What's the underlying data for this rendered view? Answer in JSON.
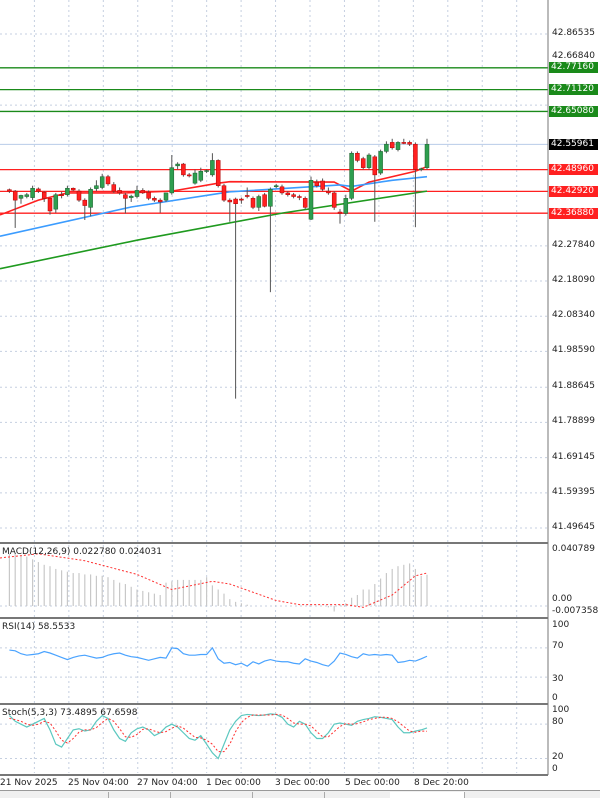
{
  "price_axis": {
    "labels": [
      "42.86535",
      "42.66840",
      "42.27840",
      "42.18090",
      "42.08340",
      "41.98590",
      "41.88645",
      "41.78899",
      "41.69145",
      "41.59395",
      "41.49645"
    ]
  },
  "levels": {
    "resistance": [
      {
        "price": 42.7716,
        "label": "42.77160"
      },
      {
        "price": 42.7112,
        "label": "42.71120"
      },
      {
        "price": 42.6508,
        "label": "42.65080"
      }
    ],
    "support": [
      {
        "price": 42.4896,
        "label": "42.48960"
      },
      {
        "price": 42.4292,
        "label": "42.42920"
      },
      {
        "price": 42.3688,
        "label": "42.36880"
      }
    ],
    "current": {
      "price": 42.55961,
      "label": "42.55961"
    }
  },
  "colors": {
    "bull": "#2e9e4f",
    "bear": "#ff2020",
    "resistance": "#1a8a1a",
    "support": "#ff2020",
    "ma_fast": "#ff2020",
    "ma_mid": "#3b9cff",
    "ma_slow": "#1f9a1f",
    "rsi": "#4aa3ff",
    "stoch_k": "#5cc8c0",
    "stoch_d": "#ff3030",
    "macd_hist": "#c8c8c8",
    "macd_signal": "#ff3030"
  },
  "chart_data": [
    {
      "type": "candlestick",
      "ohlc": [
        [
          42.434,
          42.437,
          42.425,
          42.43
        ],
        [
          42.43,
          42.433,
          42.328,
          42.405
        ],
        [
          42.41,
          42.42,
          42.395,
          42.418
        ],
        [
          42.415,
          42.425,
          42.41,
          42.42
        ],
        [
          42.412,
          42.445,
          42.405,
          42.438
        ],
        [
          42.436,
          42.44,
          42.425,
          42.43
        ],
        [
          42.427,
          42.43,
          42.4,
          42.41
        ],
        [
          42.41,
          42.412,
          42.365,
          42.375
        ],
        [
          42.38,
          42.425,
          42.37,
          42.42
        ],
        [
          42.42,
          42.428,
          42.41,
          42.418
        ],
        [
          42.42,
          42.445,
          42.415,
          42.438
        ],
        [
          42.438,
          42.44,
          42.43,
          42.433
        ],
        [
          42.43,
          42.435,
          42.4,
          42.405
        ],
        [
          42.405,
          42.41,
          42.35,
          42.39
        ],
        [
          42.385,
          42.44,
          42.36,
          42.435
        ],
        [
          42.437,
          42.46,
          42.43,
          42.445
        ],
        [
          42.44,
          42.478,
          42.435,
          42.47
        ],
        [
          42.47,
          42.475,
          42.445,
          42.45
        ],
        [
          42.448,
          42.455,
          42.425,
          42.43
        ],
        [
          42.432,
          42.44,
          42.42,
          42.425
        ],
        [
          42.42,
          42.425,
          42.368,
          42.41
        ],
        [
          42.412,
          42.42,
          42.4,
          42.416
        ],
        [
          42.415,
          42.445,
          42.41,
          42.432
        ],
        [
          42.432,
          42.438,
          42.422,
          42.425
        ],
        [
          42.427,
          42.432,
          42.405,
          42.41
        ],
        [
          42.41,
          42.415,
          42.4,
          42.405
        ],
        [
          42.405,
          42.41,
          42.37,
          42.4
        ],
        [
          42.405,
          42.425,
          42.4,
          42.425
        ],
        [
          42.425,
          42.53,
          42.42,
          42.495
        ],
        [
          42.5,
          42.51,
          42.49,
          42.505
        ],
        [
          42.505,
          42.508,
          42.47,
          42.475
        ],
        [
          42.475,
          42.48,
          42.468,
          42.472
        ],
        [
          42.452,
          42.49,
          42.448,
          42.48
        ],
        [
          42.46,
          42.495,
          42.455,
          42.485
        ],
        [
          42.485,
          42.49,
          42.48,
          42.487
        ],
        [
          42.475,
          42.535,
          42.47,
          42.515
        ],
        [
          42.515,
          42.518,
          42.44,
          42.445
        ],
        [
          42.445,
          42.45,
          42.4,
          42.405
        ],
        [
          42.405,
          42.41,
          42.345,
          42.4
        ],
        [
          42.408,
          42.412,
          41.855,
          42.395
        ],
        [
          42.408,
          42.412,
          42.395,
          42.405
        ],
        [
          42.418,
          42.44,
          42.41,
          42.415
        ],
        [
          42.41,
          42.415,
          42.38,
          42.385
        ],
        [
          42.385,
          42.42,
          42.375,
          42.415
        ],
        [
          42.42,
          42.425,
          42.385,
          42.388
        ],
        [
          42.388,
          42.44,
          42.15,
          42.435
        ],
        [
          42.442,
          42.45,
          42.438,
          42.445
        ],
        [
          42.442,
          42.448,
          42.42,
          42.425
        ],
        [
          42.425,
          42.43,
          42.415,
          42.42
        ],
        [
          42.42,
          42.425,
          42.41,
          42.415
        ],
        [
          42.415,
          42.42,
          42.405,
          42.413
        ],
        [
          42.41,
          42.415,
          42.38,
          42.385
        ],
        [
          42.352,
          42.47,
          42.35,
          42.46
        ],
        [
          42.455,
          42.462,
          42.44,
          42.445
        ],
        [
          42.458,
          42.465,
          42.43,
          42.435
        ],
        [
          42.43,
          42.44,
          42.42,
          42.425
        ],
        [
          42.425,
          42.43,
          42.378,
          42.385
        ],
        [
          42.372,
          42.38,
          42.34,
          42.368
        ],
        [
          42.368,
          42.42,
          42.362,
          42.41
        ],
        [
          42.41,
          42.54,
          42.405,
          42.535
        ],
        [
          42.535,
          42.54,
          42.51,
          42.515
        ],
        [
          42.52,
          42.525,
          42.49,
          42.495
        ],
        [
          42.495,
          42.535,
          42.49,
          42.53
        ],
        [
          42.525,
          42.53,
          42.345,
          42.475
        ],
        [
          42.48,
          42.545,
          42.475,
          42.54
        ],
        [
          42.54,
          42.568,
          42.535,
          42.56
        ],
        [
          42.565,
          42.575,
          42.545,
          42.55
        ],
        [
          42.545,
          42.568,
          42.54,
          42.565
        ],
        [
          42.565,
          42.575,
          42.56,
          42.562
        ],
        [
          42.565,
          42.57,
          42.555,
          42.56
        ],
        [
          42.56,
          42.565,
          42.33,
          42.49
        ],
        [
          42.49,
          42.495,
          42.485,
          42.492
        ],
        [
          42.495,
          42.575,
          42.49,
          42.55961
        ]
      ],
      "moving_averages": [
        {
          "points": [
            [
              0,
              42.364
            ],
            [
              5,
              42.405
            ],
            [
              10,
              42.425
            ],
            [
              20,
              42.425
            ],
            [
              28,
              42.43
            ],
            [
              36,
              42.452
            ],
            [
              38,
              42.456
            ],
            [
              56,
              42.455
            ],
            [
              59,
              42.43
            ],
            [
              62,
              42.455
            ],
            [
              70,
              42.485
            ],
            [
              72,
              42.498
            ]
          ]
        },
        {
          "points": [
            [
              0,
              42.305
            ],
            [
              21,
              42.386
            ],
            [
              38,
              42.428
            ],
            [
              57,
              42.447
            ],
            [
              59,
              42.443
            ],
            [
              66,
              42.46
            ],
            [
              72,
              42.47
            ]
          ]
        },
        {
          "points": [
            [
              0,
              42.215
            ],
            [
              22,
              42.294
            ],
            [
              47,
              42.369
            ],
            [
              72,
              42.43
            ]
          ]
        }
      ],
      "x_tick_labels": [
        "21 Nov 2025",
        "25 Nov 04:00",
        "27 Nov 04:00",
        "1 Dec 00:00",
        "3 Dec 00:00",
        "5 Dec 00:00",
        "8 Dec 20:00"
      ],
      "y_range": [
        41.47,
        42.96
      ],
      "grid": true
    },
    {
      "type": "bar+line",
      "title": "MACD(12,26,9) 0.022780 0.024031",
      "y_labels": [
        "0.040789",
        "0.00",
        "-0.007358"
      ],
      "y_range": [
        -0.007358,
        0.040789
      ],
      "histogram": [
        0.038,
        0.038,
        0.037,
        0.036,
        0.034,
        0.032,
        0.03,
        0.029,
        0.027,
        0.026,
        0.025,
        0.024,
        0.024,
        0.023,
        0.023,
        0.022,
        0.022,
        0.021,
        0.019,
        0.017,
        0.016,
        0.014,
        0.012,
        0.011,
        0.01,
        0.009,
        0.008,
        0.017,
        0.018,
        0.019,
        0.019,
        0.019,
        0.019,
        0.019,
        0.021,
        0.015,
        0.012,
        0.009,
        0.005,
        0.003,
        0.002,
        0.001,
        0,
        0,
        0,
        0,
        0,
        0,
        0,
        0,
        0,
        0,
        0,
        0,
        0,
        -0.001,
        -0.004,
        0.001,
        0.002,
        0.006,
        0.008,
        0.012,
        0.012,
        0.016,
        0.02,
        0.024,
        0.027,
        0.029,
        0.03,
        0.031,
        0.027,
        0.022,
        0.02278
      ],
      "signal": [
        [
          0,
          0.035
        ],
        [
          5,
          0.038
        ],
        [
          13,
          0.033
        ],
        [
          22,
          0.023
        ],
        [
          28,
          0.012
        ],
        [
          35,
          0.018
        ],
        [
          38,
          0.016
        ],
        [
          46,
          0.004
        ],
        [
          50,
          0.001
        ],
        [
          58,
          0.001
        ],
        [
          61,
          -0.001
        ],
        [
          66,
          0.008
        ],
        [
          70,
          0.022
        ],
        [
          72,
          0.024031
        ]
      ]
    },
    {
      "type": "line",
      "title": "RSI(14) 58.5533",
      "y_labels": [
        "100",
        "70",
        "30",
        "0"
      ],
      "y_range": [
        0,
        100
      ],
      "values": [
        67,
        66,
        62,
        60,
        61,
        62,
        65,
        63,
        60,
        57,
        54,
        57,
        59,
        60,
        58,
        56,
        57,
        60,
        62,
        63,
        60,
        58,
        57,
        55,
        53,
        55,
        57,
        56,
        70,
        69,
        62,
        60,
        60,
        61,
        61,
        70,
        55,
        49,
        50,
        47,
        49,
        45,
        51,
        48,
        52,
        54,
        52,
        51,
        51,
        49,
        48,
        55,
        52,
        50,
        47,
        45,
        52,
        63,
        61,
        58,
        56,
        62,
        60,
        61,
        60,
        61,
        60,
        50,
        51,
        53,
        52,
        55,
        58.5533
      ]
    },
    {
      "type": "line",
      "title": "Stoch(5,3,3) 73.4895 67.6598",
      "y_labels": [
        "100",
        "80",
        "20",
        "0"
      ],
      "y_range": [
        0,
        100
      ],
      "k": [
        95,
        85,
        80,
        75,
        80,
        85,
        90,
        70,
        45,
        40,
        55,
        70,
        72,
        68,
        70,
        85,
        95,
        90,
        70,
        55,
        50,
        65,
        72,
        75,
        70,
        60,
        65,
        75,
        80,
        75,
        65,
        55,
        52,
        60,
        45,
        30,
        20,
        45,
        70,
        85,
        95,
        97,
        96,
        95,
        96,
        98,
        97,
        92,
        80,
        75,
        85,
        80,
        65,
        55,
        55,
        65,
        80,
        82,
        80,
        78,
        85,
        88,
        90,
        93,
        92,
        90,
        88,
        75,
        65,
        65,
        68,
        70,
        73.4895
      ],
      "d": [
        90,
        88,
        85,
        80,
        78,
        80,
        85,
        82,
        68,
        52,
        47,
        55,
        66,
        70,
        70,
        74,
        83,
        90,
        85,
        72,
        58,
        57,
        62,
        71,
        72,
        68,
        65,
        67,
        73,
        77,
        73,
        65,
        57,
        56,
        52,
        45,
        32,
        32,
        45,
        67,
        83,
        92,
        96,
        96,
        96,
        96,
        97,
        96,
        90,
        82,
        80,
        80,
        77,
        67,
        58,
        58,
        67,
        76,
        81,
        80,
        81,
        84,
        88,
        90,
        92,
        92,
        90,
        84,
        76,
        68,
        66,
        68,
        67.6598
      ]
    }
  ]
}
